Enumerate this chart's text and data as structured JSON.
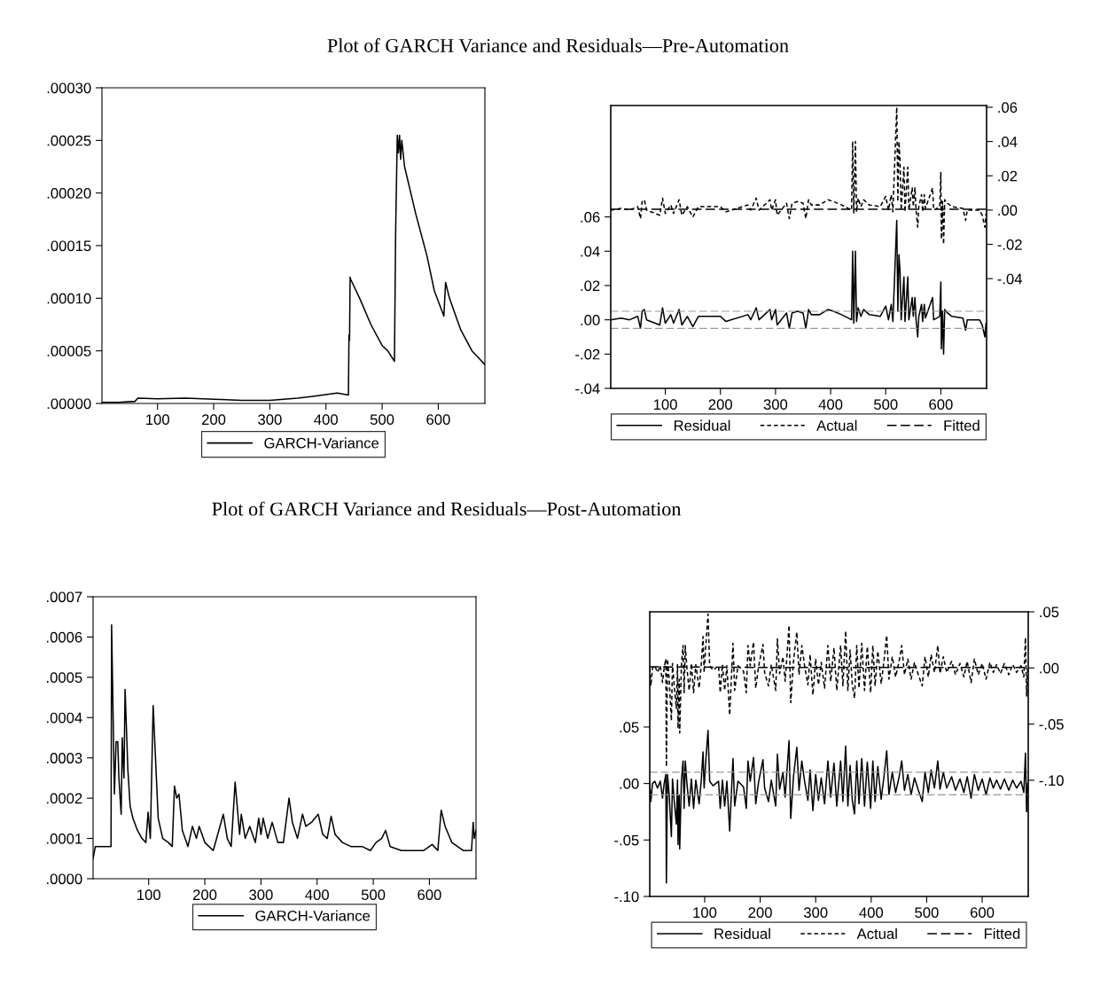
{
  "chart_data": [
    {
      "type": "line",
      "title": "Plot of GARCH Variance and Residuals—Pre-Automation",
      "xlim": [
        1,
        683
      ],
      "xticks": [
        100,
        200,
        300,
        400,
        500,
        600
      ],
      "ylim": [
        0,
        0.0003
      ],
      "yticks": [
        {
          "value": 0,
          "label": ".00000"
        },
        {
          "value": 5e-05,
          "label": ".00005"
        },
        {
          "value": 0.0001,
          "label": ".00010"
        },
        {
          "value": 0.00015,
          "label": ".00015"
        },
        {
          "value": 0.0002,
          "label": ".00020"
        },
        {
          "value": 0.00025,
          "label": ".00025"
        },
        {
          "value": 0.0003,
          "label": ".00030"
        }
      ],
      "grid": false,
      "legend": "bottom",
      "series": [
        {
          "name": "GARCH-Variance",
          "color": "#000000",
          "line_style": "solid",
          "x": [
            1,
            30,
            60,
            65,
            100,
            150,
            200,
            250,
            300,
            350,
            380,
            420,
            440,
            441,
            442,
            443,
            444,
            460,
            480,
            500,
            510,
            522,
            524,
            527,
            529,
            531,
            533,
            535,
            540,
            560,
            580,
            593,
            610,
            613,
            620,
            640,
            660,
            683
          ],
          "values": [
            1e-06,
            1e-06,
            2e-06,
            5e-06,
            4.5e-06,
            5e-06,
            4e-06,
            3e-06,
            3e-06,
            5e-06,
            7e-06,
            1e-05,
            8e-06,
            6.5e-05,
            6e-05,
            0.00012,
            0.000118,
            0.0001,
            7.5e-05,
            5.5e-05,
            5e-05,
            4e-05,
            0.00016,
            0.000255,
            0.000238,
            0.000255,
            0.000232,
            0.00025,
            0.000225,
            0.00018,
            0.00014,
            0.000107,
            8.3e-05,
            0.000115,
            0.0001,
            7e-05,
            5e-05,
            3.7e-05
          ]
        }
      ]
    },
    {
      "type": "line",
      "xlim": [
        1,
        683
      ],
      "xticks": [
        100,
        200,
        300,
        400,
        500,
        600
      ],
      "ylim": [
        -0.04,
        0.125
      ],
      "yticks": [
        {
          "value": -0.04,
          "label": "-.04"
        },
        {
          "value": -0.02,
          "label": "-.02"
        },
        {
          "value": 0,
          "label": ".00"
        },
        {
          "value": 0.02,
          "label": ".02"
        },
        {
          "value": 0.04,
          "label": ".04"
        },
        {
          "value": 0.06,
          "label": ".06"
        }
      ],
      "y2lim": [
        -0.104,
        0.061
      ],
      "y2ticks": [
        {
          "value": -0.04,
          "label": "-.04"
        },
        {
          "value": -0.02,
          "label": "-.02"
        },
        {
          "value": 0,
          "label": ".00"
        },
        {
          "value": 0.02,
          "label": ".02"
        },
        {
          "value": 0.04,
          "label": ".04"
        },
        {
          "value": 0.06,
          "label": ".06"
        }
      ],
      "grid": false,
      "legend": "bottom",
      "ref_lines": [
        {
          "axis": "y",
          "value": 0.005,
          "color": "#999999",
          "line_style": "dashed"
        },
        {
          "axis": "y",
          "value": -0.005,
          "color": "#999999",
          "line_style": "dashed"
        }
      ],
      "series": [
        {
          "name": "Residual",
          "color": "#000000",
          "line_style": "solid",
          "x": [
            1,
            20,
            35,
            50,
            55,
            58,
            62,
            66,
            90,
            95,
            100,
            110,
            115,
            125,
            130,
            140,
            150,
            160,
            200,
            210,
            250,
            255,
            265,
            270,
            290,
            293,
            300,
            303,
            320,
            325,
            330,
            340,
            350,
            355,
            360,
            365,
            380,
            395,
            405,
            420,
            438,
            440,
            442,
            445,
            447,
            450,
            455,
            460,
            470,
            490,
            500,
            505,
            510,
            513,
            520,
            522,
            524,
            526,
            528,
            533,
            535,
            540,
            542,
            548,
            550,
            553,
            555,
            558,
            560,
            565,
            567,
            570,
            572,
            585,
            587,
            598,
            600,
            601,
            603,
            605,
            607,
            612,
            620,
            640,
            645,
            648,
            670,
            675,
            680,
            682
          ],
          "values": [
            0,
            0.001,
            0,
            0.002,
            -0.005,
            0.005,
            0.006,
            0,
            -0.003,
            0.007,
            -0.002,
            0.003,
            -0.002,
            0.006,
            -0.003,
            0.002,
            -0.004,
            0.002,
            0.002,
            -0.001,
            0.003,
            0,
            0.007,
            0,
            0.006,
            0,
            0.006,
            -0.003,
            0.004,
            -0.005,
            0.004,
            0.005,
            0.004,
            -0.005,
            0.006,
            0.003,
            0.003,
            0.006,
            0.005,
            0.003,
            0,
            0.04,
            -0.002,
            0.04,
            -0.001,
            0.007,
            0.002,
            0.006,
            0.003,
            0.002,
            0.008,
            0,
            0.009,
            -0.001,
            0.058,
            0.005,
            0.038,
            0.028,
            0,
            0.025,
            -0.001,
            0.025,
            0,
            0.013,
            0.002,
            0.013,
            0,
            -0.01,
            0.002,
            0.009,
            -0.001,
            0.009,
            0.001,
            0.013,
            0,
            0.002,
            0.022,
            -0.017,
            0.005,
            -0.02,
            0.006,
            0.004,
            0.002,
            0.001,
            -0.006,
            0,
            0,
            -0.003,
            -0.01,
            -0.002
          ]
        },
        {
          "name": "Actual",
          "color": "#000000",
          "line_style": "dotted",
          "axis": "y2",
          "x": [
            1,
            20,
            35,
            50,
            55,
            58,
            62,
            66,
            90,
            95,
            100,
            110,
            115,
            125,
            130,
            140,
            150,
            160,
            200,
            210,
            250,
            255,
            265,
            270,
            290,
            293,
            300,
            303,
            320,
            325,
            330,
            340,
            350,
            355,
            360,
            365,
            380,
            395,
            405,
            420,
            438,
            440,
            442,
            445,
            447,
            450,
            455,
            460,
            470,
            490,
            500,
            505,
            510,
            513,
            520,
            522,
            524,
            526,
            528,
            533,
            535,
            540,
            542,
            548,
            550,
            553,
            555,
            558,
            560,
            565,
            567,
            570,
            572,
            585,
            587,
            598,
            600,
            601,
            603,
            605,
            607,
            612,
            620,
            640,
            645,
            648,
            670,
            675,
            680,
            682
          ],
          "values": [
            0,
            0.001,
            0,
            0.002,
            -0.005,
            0.005,
            0.006,
            0,
            -0.003,
            0.007,
            -0.002,
            0.003,
            -0.002,
            0.006,
            -0.003,
            0.002,
            -0.004,
            0.002,
            0.002,
            -0.001,
            0.003,
            0,
            0.007,
            0,
            0.006,
            0,
            0.006,
            -0.003,
            0.004,
            -0.005,
            0.004,
            0.005,
            0.004,
            -0.005,
            0.006,
            0.003,
            0.003,
            0.006,
            0.005,
            0.003,
            0,
            0.04,
            -0.002,
            0.04,
            -0.001,
            0.007,
            0.002,
            0.006,
            0.003,
            0.002,
            0.008,
            0,
            0.009,
            -0.001,
            0.06,
            0.005,
            0.04,
            0.028,
            0,
            0.025,
            -0.001,
            0.025,
            0,
            0.013,
            0.002,
            0.013,
            0,
            -0.01,
            0.002,
            0.009,
            -0.001,
            0.009,
            0.001,
            0.013,
            0,
            0.002,
            0.022,
            -0.017,
            0.005,
            -0.02,
            0.006,
            0.004,
            0.002,
            0.001,
            -0.006,
            0,
            0,
            -0.003,
            -0.01,
            -0.002
          ]
        },
        {
          "name": "Fitted",
          "color": "#000000",
          "line_style": "dashed",
          "axis": "y2",
          "x": [
            1,
            200,
            400,
            600,
            683
          ],
          "values": [
            0.0005,
            0.0005,
            0.0005,
            0.0005,
            0.0005
          ]
        }
      ]
    },
    {
      "type": "line",
      "title": "Plot of GARCH Variance and Residuals—Post-Automation",
      "xlim": [
        1,
        683
      ],
      "xticks": [
        100,
        200,
        300,
        400,
        500,
        600
      ],
      "ylim": [
        0,
        0.0007
      ],
      "yticks": [
        {
          "value": 0,
          "label": ".0000"
        },
        {
          "value": 0.0001,
          "label": ".0001"
        },
        {
          "value": 0.0002,
          "label": ".0002"
        },
        {
          "value": 0.0003,
          "label": ".0003"
        },
        {
          "value": 0.0004,
          "label": ".0004"
        },
        {
          "value": 0.0005,
          "label": ".0005"
        },
        {
          "value": 0.0006,
          "label": ".0006"
        },
        {
          "value": 0.0007,
          "label": ".0007"
        }
      ],
      "grid": false,
      "legend": "bottom",
      "series": [
        {
          "name": "GARCH-Variance",
          "color": "#000000",
          "line_style": "solid",
          "x": [
            1,
            5,
            30,
            33,
            34,
            39,
            42,
            45,
            47,
            51,
            53,
            56,
            58,
            63,
            67,
            72,
            80,
            88,
            95,
            99,
            103,
            108,
            117,
            125,
            135,
            142,
            146,
            150,
            154,
            160,
            170,
            178,
            185,
            190,
            200,
            215,
            233,
            240,
            247,
            254,
            262,
            265,
            272,
            280,
            290,
            296,
            300,
            304,
            312,
            320,
            330,
            340,
            350,
            356,
            365,
            374,
            380,
            390,
            402,
            410,
            418,
            425,
            432,
            445,
            460,
            480,
            495,
            505,
            515,
            522,
            530,
            550,
            570,
            590,
            605,
            615,
            621,
            628,
            640,
            660,
            675,
            678,
            680,
            683
          ],
          "values": [
            5e-05,
            8e-05,
            8e-05,
            8e-05,
            0.00063,
            0.00021,
            0.00034,
            0.00034,
            0.00025,
            0.00016,
            0.00035,
            0.00025,
            0.00047,
            0.00027,
            0.00018,
            0.00015,
            0.00012,
            0.0001,
            9e-05,
            0.000165,
            0.0001,
            0.00043,
            0.00015,
            0.0001,
            9e-05,
            8e-05,
            0.00023,
            0.0002,
            0.00021,
            0.00012,
            8e-05,
            0.00013,
            0.0001,
            0.00013,
            9e-05,
            7e-05,
            0.00016,
            0.0001,
            8e-05,
            0.00024,
            0.00011,
            0.00016,
            0.0001,
            0.00013,
            9e-05,
            0.00015,
            0.00011,
            0.00015,
            0.0001,
            0.00014,
            9e-05,
            9e-05,
            0.0002,
            0.00014,
            0.0001,
            0.00016,
            0.00013,
            0.00014,
            0.00016,
            0.00011,
            0.0001,
            0.000155,
            0.00011,
            9e-05,
            8e-05,
            8e-05,
            7e-05,
            9e-05,
            0.0001,
            0.00012,
            8e-05,
            7e-05,
            7e-05,
            7e-05,
            8.5e-05,
            7e-05,
            0.00017,
            0.00013,
            9e-05,
            7e-05,
            7e-05,
            0.00014,
            0.0001,
            0.00012
          ]
        }
      ]
    },
    {
      "type": "line",
      "xlim": [
        1,
        683
      ],
      "xticks": [
        100,
        200,
        300,
        400,
        500,
        600
      ],
      "ylim": [
        -0.1,
        0.152
      ],
      "yticks": [
        {
          "value": -0.1,
          "label": "-.10"
        },
        {
          "value": -0.05,
          "label": "-.05"
        },
        {
          "value": 0,
          "label": ".00"
        },
        {
          "value": 0.05,
          "label": ".05"
        }
      ],
      "y2lim": [
        -0.2035,
        0.05
      ],
      "y2ticks": [
        {
          "value": -0.1,
          "label": "-.10"
        },
        {
          "value": -0.05,
          "label": "-.05"
        },
        {
          "value": 0,
          "label": ".00"
        },
        {
          "value": 0.05,
          "label": ".05"
        }
      ],
      "grid": false,
      "legend": "bottom",
      "ref_lines": [
        {
          "axis": "y",
          "value": 0.01,
          "color": "#999999",
          "line_style": "dashed"
        },
        {
          "axis": "y",
          "value": -0.01,
          "color": "#999999",
          "line_style": "dashed"
        }
      ],
      "series": [
        {
          "name": "Residual",
          "color": "#000000",
          "line_style": "solid",
          "x": [
            1,
            3,
            6,
            10,
            15,
            20,
            24,
            27,
            30,
            31,
            33,
            36,
            40,
            42,
            45,
            49,
            51,
            52,
            54,
            55,
            58,
            61,
            63,
            65,
            68,
            72,
            76,
            80,
            84,
            90,
            94,
            97,
            99,
            102,
            106,
            109,
            115,
            125,
            128,
            132,
            136,
            140,
            145,
            148,
            151,
            154,
            160,
            170,
            175,
            178,
            182,
            188,
            192,
            197,
            205,
            208,
            215,
            220,
            228,
            231,
            235,
            241,
            245,
            252,
            255,
            260,
            266,
            270,
            275,
            280,
            286,
            290,
            295,
            300,
            305,
            310,
            316,
            322,
            327,
            333,
            338,
            345,
            349,
            354,
            358,
            362,
            366,
            370,
            374,
            378,
            383,
            388,
            393,
            399,
            403,
            407,
            412,
            418,
            423,
            428,
            432,
            438,
            444,
            450,
            455,
            460,
            466,
            472,
            478,
            485,
            492,
            497,
            503,
            508,
            514,
            520,
            524,
            530,
            536,
            545,
            552,
            560,
            567,
            573,
            580,
            586,
            593,
            600,
            607,
            614,
            620,
            626,
            633,
            640,
            648,
            655,
            662,
            670,
            675,
            678,
            680,
            682
          ],
          "values": [
            0,
            -0.016,
            0,
            0.002,
            -0.004,
            0.002,
            -0.013,
            0,
            0.008,
            -0.088,
            0.008,
            -0.01,
            -0.047,
            0.004,
            -0.015,
            -0.036,
            0.003,
            -0.054,
            -0.01,
            -0.058,
            0.002,
            0.02,
            -0.022,
            0.02,
            0,
            -0.02,
            0.004,
            -0.022,
            0.003,
            -0.018,
            0.004,
            0.028,
            -0.004,
            0.02,
            0.047,
            0.002,
            -0.002,
            0.002,
            -0.022,
            0.003,
            -0.02,
            0.002,
            -0.042,
            -0.01,
            0.022,
            -0.02,
            0.002,
            -0.003,
            -0.022,
            0.02,
            0.002,
            0.023,
            -0.018,
            0.001,
            0.021,
            -0.004,
            -0.016,
            0.003,
            -0.02,
            0.026,
            -0.005,
            0.01,
            -0.012,
            0.038,
            -0.031,
            0.006,
            0.032,
            -0.006,
            0.02,
            0.002,
            -0.015,
            0.012,
            -0.024,
            0.008,
            -0.015,
            0.005,
            -0.018,
            0.02,
            -0.012,
            0.018,
            -0.02,
            0.02,
            -0.016,
            0.033,
            -0.02,
            0.016,
            -0.015,
            -0.027,
            0.02,
            -0.018,
            0.022,
            -0.02,
            0.019,
            -0.022,
            0.02,
            -0.016,
            0.015,
            -0.014,
            0.006,
            0.029,
            -0.01,
            0.01,
            -0.008,
            0.005,
            0.02,
            -0.006,
            0.008,
            -0.01,
            0.005,
            -0.006,
            -0.016,
            0.01,
            -0.008,
            0.012,
            -0.004,
            0.02,
            -0.005,
            0.01,
            -0.004,
            0.006,
            -0.006,
            0.004,
            -0.008,
            0.006,
            -0.013,
            0.008,
            -0.006,
            0.004,
            -0.01,
            0.005,
            -0.004,
            0.003,
            -0.005,
            0.004,
            -0.006,
            0.003,
            -0.004,
            0.002,
            -0.008,
            0.027,
            -0.025,
            0
          ]
        },
        {
          "name": "Actual",
          "color": "#000000",
          "line_style": "dotted",
          "axis": "y2",
          "x": [
            1,
            3,
            6,
            10,
            15,
            20,
            24,
            27,
            30,
            31,
            33,
            36,
            40,
            42,
            45,
            49,
            51,
            52,
            54,
            55,
            58,
            61,
            63,
            65,
            68,
            72,
            76,
            80,
            84,
            90,
            94,
            97,
            99,
            102,
            106,
            109,
            115,
            125,
            128,
            132,
            136,
            140,
            145,
            148,
            151,
            154,
            160,
            170,
            175,
            178,
            182,
            188,
            192,
            197,
            205,
            208,
            215,
            220,
            228,
            231,
            235,
            241,
            245,
            252,
            255,
            260,
            266,
            270,
            275,
            280,
            286,
            290,
            295,
            300,
            305,
            310,
            316,
            322,
            327,
            333,
            338,
            345,
            349,
            354,
            358,
            362,
            366,
            370,
            374,
            378,
            383,
            388,
            393,
            399,
            403,
            407,
            412,
            418,
            423,
            428,
            432,
            438,
            444,
            450,
            455,
            460,
            466,
            472,
            478,
            485,
            492,
            497,
            503,
            508,
            514,
            520,
            524,
            530,
            536,
            545,
            552,
            560,
            567,
            573,
            580,
            586,
            593,
            600,
            607,
            614,
            620,
            626,
            633,
            640,
            648,
            655,
            662,
            670,
            675,
            678,
            680,
            682
          ],
          "values": [
            0,
            -0.016,
            0,
            0.002,
            -0.004,
            0.002,
            -0.013,
            0,
            0.008,
            -0.088,
            0.008,
            -0.01,
            -0.047,
            0.004,
            -0.015,
            -0.036,
            0.003,
            -0.054,
            -0.01,
            -0.058,
            0.002,
            0.02,
            -0.022,
            0.02,
            0,
            -0.02,
            0.004,
            -0.022,
            0.003,
            -0.018,
            0.004,
            0.028,
            -0.004,
            0.02,
            0.048,
            0.002,
            -0.002,
            0.002,
            -0.022,
            0.003,
            -0.02,
            0.002,
            -0.042,
            -0.01,
            0.022,
            -0.02,
            0.002,
            -0.003,
            -0.022,
            0.02,
            0.002,
            0.023,
            -0.018,
            0.001,
            0.021,
            -0.004,
            -0.016,
            0.003,
            -0.02,
            0.026,
            -0.005,
            0.01,
            -0.012,
            0.038,
            -0.031,
            0.006,
            0.032,
            -0.006,
            0.02,
            0.002,
            -0.015,
            0.012,
            -0.024,
            0.008,
            -0.015,
            0.005,
            -0.018,
            0.02,
            -0.012,
            0.018,
            -0.02,
            0.02,
            -0.016,
            0.033,
            -0.02,
            0.016,
            -0.015,
            -0.027,
            0.02,
            -0.018,
            0.022,
            -0.02,
            0.019,
            -0.022,
            0.02,
            -0.016,
            0.015,
            -0.014,
            0.006,
            0.029,
            -0.01,
            0.01,
            -0.008,
            0.005,
            0.02,
            -0.006,
            0.008,
            -0.01,
            0.005,
            -0.006,
            -0.016,
            0.01,
            -0.008,
            0.012,
            -0.004,
            0.02,
            -0.005,
            0.01,
            -0.004,
            0.006,
            -0.006,
            0.004,
            -0.008,
            0.006,
            -0.013,
            0.008,
            -0.006,
            0.004,
            -0.01,
            0.005,
            -0.004,
            0.003,
            -0.005,
            0.004,
            -0.006,
            0.003,
            -0.004,
            0.002,
            -0.008,
            0.027,
            -0.025,
            0
          ]
        },
        {
          "name": "Fitted",
          "color": "#000000",
          "line_style": "dashed",
          "axis": "y2",
          "x": [
            1,
            200,
            400,
            600,
            683
          ],
          "values": [
            0.001,
            0.0005,
            0.0005,
            0.0005,
            0.0005
          ]
        }
      ]
    }
  ]
}
